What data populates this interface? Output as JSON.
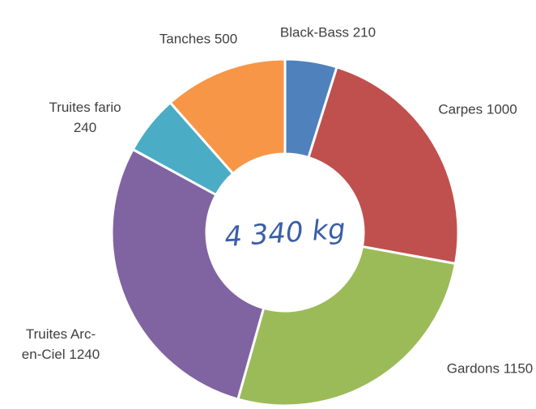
{
  "chart_data": {
    "type": "donut",
    "categories": [
      "Black-Bass",
      "Carpes",
      "Gardons",
      "Truites Arc-en-Ciel",
      "Truites fario",
      "Tanches"
    ],
    "values": [
      210,
      1000,
      1150,
      1240,
      240,
      500
    ],
    "colors": [
      "#4f81bd",
      "#c0504d",
      "#9bbb59",
      "#8064a2",
      "#4bacc6",
      "#f79646"
    ],
    "center_label": "4 340 kg"
  }
}
